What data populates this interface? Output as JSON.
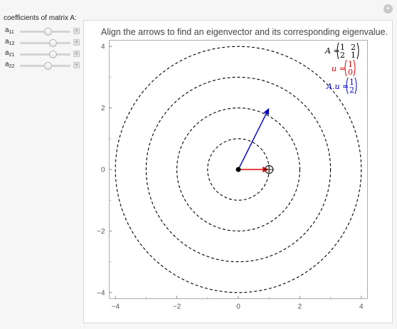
{
  "window": {
    "close_symbol": "+"
  },
  "controls": {
    "title": "coefficients of matrix A:",
    "sliders": [
      {
        "label": "a",
        "sub": "11",
        "value": 0.55,
        "plus": "+"
      },
      {
        "label": "a",
        "sub": "12",
        "value": 0.65,
        "plus": "+"
      },
      {
        "label": "a",
        "sub": "21",
        "value": 0.65,
        "plus": "+"
      },
      {
        "label": "a",
        "sub": "22",
        "value": 0.55,
        "plus": "+"
      }
    ]
  },
  "plot": {
    "caption": "Align the arrows to find an eigenvector and its corresponding eigenvalue.",
    "xlim": [
      -4.2,
      4.2
    ],
    "ylim": [
      -4.2,
      4.2
    ],
    "x_ticks": [
      "−4",
      "−2",
      "0",
      "2",
      "4"
    ],
    "y_ticks": [
      "4",
      "2",
      "0",
      "−2",
      "−4"
    ],
    "circle_radii": [
      1,
      2,
      3,
      4
    ],
    "vector_u": [
      1,
      0
    ],
    "vector_Au": [
      1,
      2
    ],
    "colors": {
      "u": "#e00000",
      "Au": "#0000cc",
      "circle": "#000000"
    }
  },
  "legend": {
    "matrix_label": "A =",
    "matrix": [
      [
        "1",
        "2"
      ],
      [
        "2",
        "1"
      ]
    ],
    "u_label": "u =",
    "u_vec": [
      "1",
      "0"
    ],
    "Au_label": "A.u =",
    "Au_vec": [
      "1",
      "2"
    ]
  }
}
